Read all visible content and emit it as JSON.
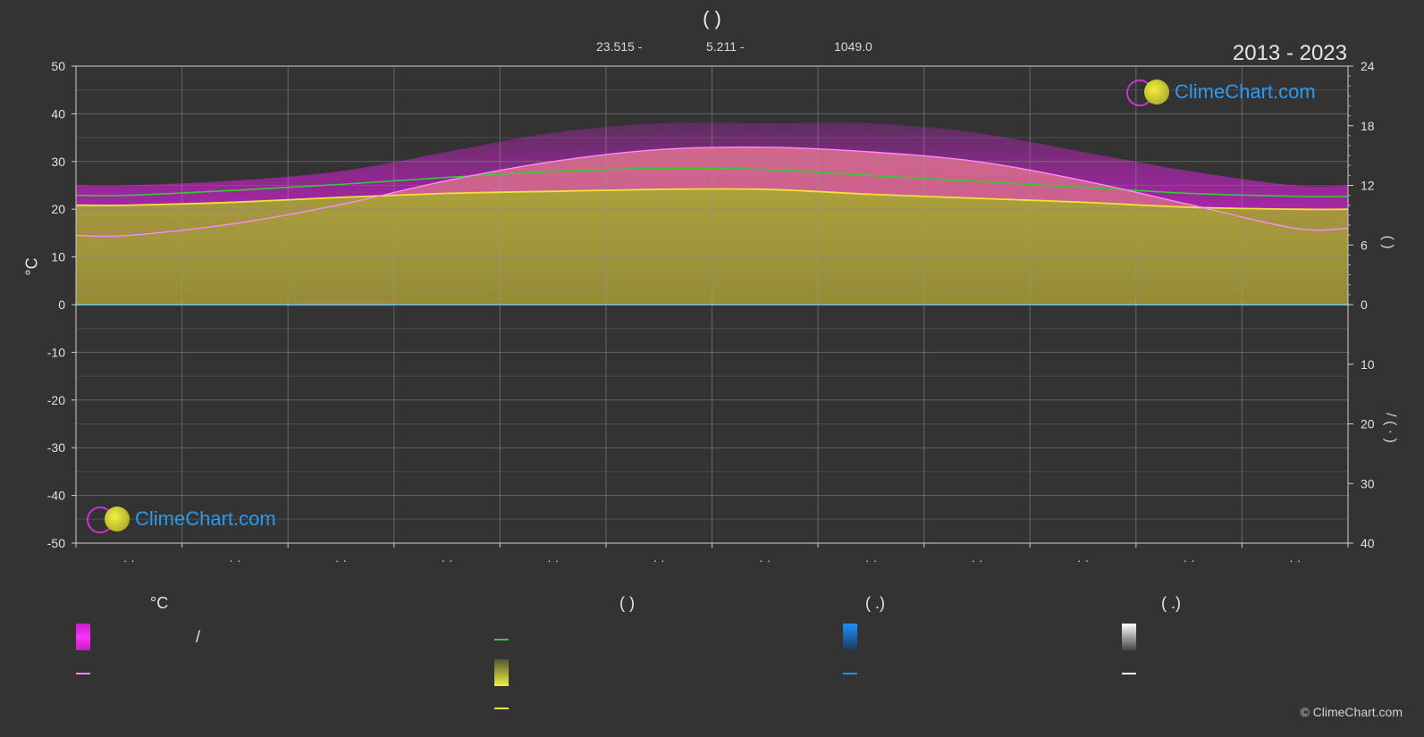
{
  "header": {
    "title": "(          )",
    "stat1": "23.515 -",
    "stat2": "5.211 -",
    "stat3": "1049.0",
    "period": "2013 - 2023"
  },
  "logo": {
    "text": "ClimeChart.com"
  },
  "copyright": "© ClimeChart.com",
  "axes": {
    "left_label": "°C",
    "right_label_top": "(    )",
    "right_label_bottom": "/    (   ·   )",
    "left_ticks": [
      "50",
      "40",
      "30",
      "20",
      "10",
      "0",
      "-10",
      "-20",
      "-30",
      "-40",
      "-50"
    ],
    "right_ticks_top": [
      "24",
      "18",
      "12",
      "6",
      "0"
    ],
    "right_ticks_bottom": [
      "10",
      "20",
      "30",
      "40"
    ],
    "month_labels": [
      "· ·",
      "· ·",
      "· ·",
      "· ·",
      "· ·",
      "· ·",
      "· ·",
      "· ·",
      "· ·",
      "· ·",
      "· ·",
      "· ·"
    ]
  },
  "legend": {
    "col1_head": "°C",
    "col2_head": "(          )",
    "col3_head": "(   .)",
    "col4_head": "(   .)",
    "slash": "/"
  },
  "colors": {
    "background": "#333333",
    "magenta": "#e020e0",
    "pink": "#e07090",
    "olive": "#a8a832",
    "green_line": "#33cc33",
    "yellow_line": "#f0e040",
    "pink_line": "#ff88ff",
    "blue": "#1e90ff",
    "grid": "#777777"
  },
  "chart_data": {
    "type": "area",
    "title": "",
    "x": [
      "1",
      "2",
      "3",
      "4",
      "5",
      "6",
      "7",
      "8",
      "9",
      "10",
      "11",
      "12"
    ],
    "ylim": [
      -50,
      50
    ],
    "y2_sun_lim": [
      0,
      24
    ],
    "y2_precip_lim": [
      0,
      40
    ],
    "series": [
      {
        "key": "max_band",
        "values": [
          25,
          26,
          28,
          32,
          36,
          38,
          38,
          38,
          36,
          32,
          28,
          25
        ]
      },
      {
        "key": "mean_max_line",
        "values": [
          14.5,
          17,
          21,
          26,
          30,
          32.5,
          33,
          32,
          30,
          26,
          21,
          16
        ]
      },
      {
        "key": "daylight_hours",
        "values": [
          11.0,
          11.5,
          12.1,
          12.8,
          13.4,
          13.7,
          13.6,
          13.0,
          12.4,
          11.8,
          11.2,
          10.9
        ]
      },
      {
        "key": "sunshine_hours",
        "values": [
          10.0,
          10.3,
          10.8,
          11.2,
          11.4,
          11.6,
          11.6,
          11.1,
          10.7,
          10.3,
          9.8,
          9.6
        ]
      },
      {
        "key": "precipitation",
        "values": [
          0.2,
          0.2,
          0.3,
          0.1,
          0.1,
          0.0,
          0.0,
          0.1,
          0.1,
          0.2,
          0.2,
          0.2
        ]
      }
    ],
    "grid": true
  }
}
